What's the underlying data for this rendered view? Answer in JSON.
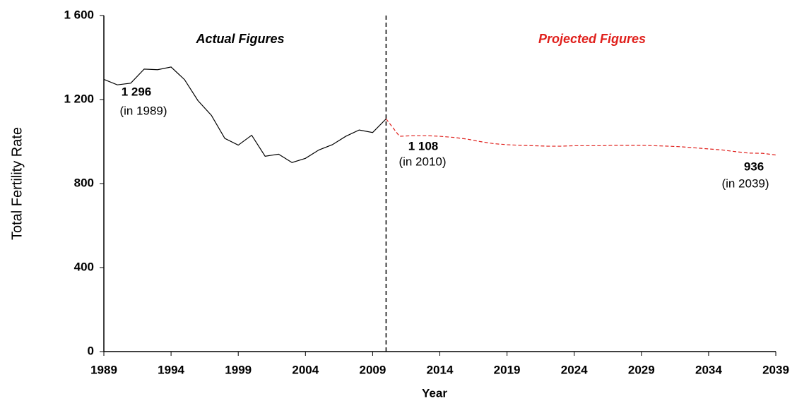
{
  "chart_data": {
    "type": "line",
    "y_label": "Total Fertility Rate",
    "x_label": "Year",
    "section_labels": [
      "Actual Figures",
      "Projected Figures"
    ],
    "divider": 2010,
    "annotations": [
      "1 296",
      "(in 1989)",
      "1 108",
      "(in 2010)",
      "936",
      "(in 2039)"
    ],
    "x": [
      1989,
      1990,
      1991,
      1992,
      1993,
      1994,
      1995,
      1996,
      1997,
      1998,
      1999,
      2000,
      2001,
      2002,
      2003,
      2004,
      2005,
      2006,
      2007,
      2008,
      2009,
      2010,
      2011,
      2012,
      2013,
      2014,
      2015,
      2016,
      2017,
      2018,
      2019,
      2020,
      2021,
      2022,
      2023,
      2024,
      2025,
      2026,
      2027,
      2028,
      2029,
      2030,
      2031,
      2032,
      2033,
      2034,
      2035,
      2036,
      2037,
      2038,
      2039
    ],
    "series": [
      {
        "name": "Actual Figures",
        "color": "#000000",
        "dashed": false,
        "values": [
          1296,
          1270,
          1278,
          1345,
          1342,
          1355,
          1295,
          1195,
          1125,
          1015,
          983,
          1030,
          930,
          940,
          900,
          920,
          960,
          985,
          1025,
          1055,
          1043,
          1108,
          null,
          null,
          null,
          null,
          null,
          null,
          null,
          null,
          null,
          null,
          null,
          null,
          null,
          null,
          null,
          null,
          null,
          null,
          null,
          null,
          null,
          null,
          null,
          null,
          null,
          null,
          null,
          null,
          null
        ]
      },
      {
        "name": "Projected Figures",
        "color": "#e0201c",
        "dashed": true,
        "values": [
          null,
          null,
          null,
          null,
          null,
          null,
          null,
          null,
          null,
          null,
          null,
          null,
          null,
          null,
          null,
          null,
          null,
          null,
          null,
          null,
          null,
          1108,
          1025,
          1028,
          1028,
          1025,
          1020,
          1012,
          1000,
          990,
          985,
          982,
          980,
          978,
          978,
          980,
          980,
          980,
          982,
          982,
          982,
          980,
          978,
          975,
          970,
          965,
          960,
          952,
          945,
          944,
          936
        ]
      }
    ],
    "xlim": [
      1989,
      2039
    ],
    "xticks": [
      1989,
      1994,
      1999,
      2004,
      2009,
      2014,
      2019,
      2024,
      2029,
      2034,
      2039
    ],
    "ylim": [
      0,
      1600
    ],
    "yticks": [
      0,
      400,
      800,
      {
        "value": 1200,
        "label": "1 200"
      },
      {
        "value": 1600,
        "label": "1 600"
      }
    ],
    "grid": false
  }
}
